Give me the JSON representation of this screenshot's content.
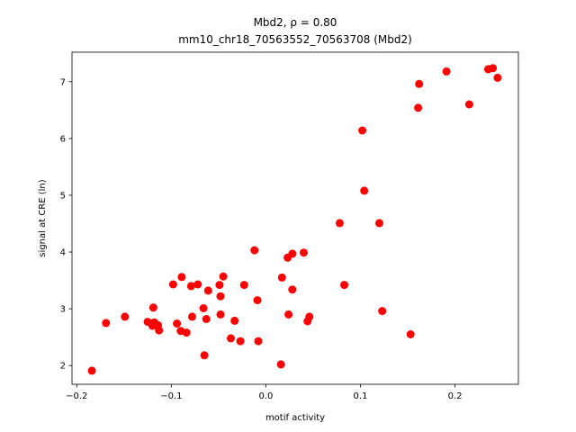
{
  "chart_data": {
    "type": "scatter",
    "title_line1": "Mbd2, ρ = 0.80",
    "title_line2": "mm10_chr18_70563552_70563708 (Mbd2)",
    "xlabel": "motif activity",
    "ylabel": "signal at CRE (ln)",
    "xlim": [
      -0.205,
      0.267
    ],
    "ylim": [
      1.67,
      7.52
    ],
    "xticks": [
      -0.2,
      -0.1,
      0.0,
      0.1,
      0.2
    ],
    "xtick_labels": [
      "−0.2",
      "−0.1",
      "0.0",
      "0.1",
      "0.2"
    ],
    "yticks": [
      2,
      3,
      4,
      5,
      6,
      7
    ],
    "ytick_labels": [
      "2",
      "3",
      "4",
      "5",
      "6",
      "7"
    ],
    "marker_color": "#ff0000",
    "grid": false,
    "points": [
      {
        "x": -0.184,
        "y": 1.91
      },
      {
        "x": -0.169,
        "y": 2.75
      },
      {
        "x": -0.149,
        "y": 2.86
      },
      {
        "x": -0.125,
        "y": 2.77
      },
      {
        "x": -0.12,
        "y": 2.7
      },
      {
        "x": -0.119,
        "y": 3.02
      },
      {
        "x": -0.118,
        "y": 2.76
      },
      {
        "x": -0.114,
        "y": 2.71
      },
      {
        "x": -0.113,
        "y": 2.62
      },
      {
        "x": -0.098,
        "y": 3.43
      },
      {
        "x": -0.094,
        "y": 2.74
      },
      {
        "x": -0.09,
        "y": 2.61
      },
      {
        "x": -0.089,
        "y": 3.56
      },
      {
        "x": -0.084,
        "y": 2.58
      },
      {
        "x": -0.079,
        "y": 3.4
      },
      {
        "x": -0.078,
        "y": 2.86
      },
      {
        "x": -0.072,
        "y": 3.43
      },
      {
        "x": -0.066,
        "y": 3.01
      },
      {
        "x": -0.065,
        "y": 2.18
      },
      {
        "x": -0.063,
        "y": 2.82
      },
      {
        "x": -0.061,
        "y": 3.32
      },
      {
        "x": -0.049,
        "y": 3.42
      },
      {
        "x": -0.048,
        "y": 3.22
      },
      {
        "x": -0.048,
        "y": 2.9
      },
      {
        "x": -0.045,
        "y": 3.57
      },
      {
        "x": -0.037,
        "y": 2.48
      },
      {
        "x": -0.033,
        "y": 2.79
      },
      {
        "x": -0.027,
        "y": 2.43
      },
      {
        "x": -0.023,
        "y": 3.42
      },
      {
        "x": -0.012,
        "y": 4.03
      },
      {
        "x": -0.009,
        "y": 3.15
      },
      {
        "x": -0.008,
        "y": 2.43
      },
      {
        "x": 0.016,
        "y": 2.02
      },
      {
        "x": 0.017,
        "y": 3.55
      },
      {
        "x": 0.023,
        "y": 3.9
      },
      {
        "x": 0.024,
        "y": 2.9
      },
      {
        "x": 0.028,
        "y": 3.34
      },
      {
        "x": 0.028,
        "y": 3.97
      },
      {
        "x": 0.04,
        "y": 3.99
      },
      {
        "x": 0.044,
        "y": 2.78
      },
      {
        "x": 0.046,
        "y": 2.86
      },
      {
        "x": 0.078,
        "y": 4.51
      },
      {
        "x": 0.083,
        "y": 3.42
      },
      {
        "x": 0.102,
        "y": 6.14
      },
      {
        "x": 0.104,
        "y": 5.08
      },
      {
        "x": 0.12,
        "y": 4.51
      },
      {
        "x": 0.123,
        "y": 2.96
      },
      {
        "x": 0.153,
        "y": 2.55
      },
      {
        "x": 0.161,
        "y": 6.54
      },
      {
        "x": 0.162,
        "y": 6.96
      },
      {
        "x": 0.191,
        "y": 7.18
      },
      {
        "x": 0.215,
        "y": 6.6
      },
      {
        "x": 0.235,
        "y": 7.22
      },
      {
        "x": 0.24,
        "y": 7.24
      },
      {
        "x": 0.245,
        "y": 7.07
      }
    ]
  }
}
